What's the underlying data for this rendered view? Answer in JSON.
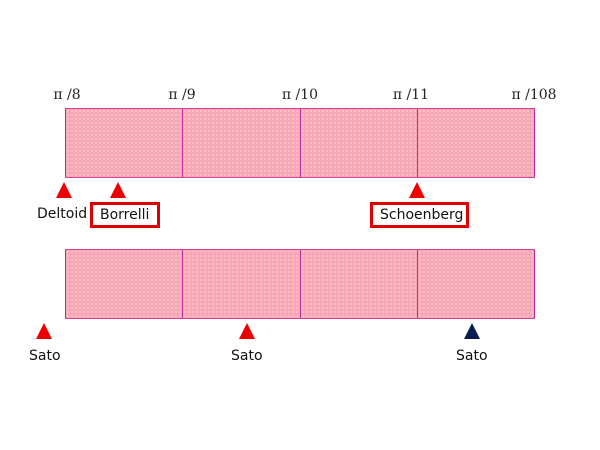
{
  "scale_ticks": [
    "π /8",
    "π /9",
    "π /10",
    "π /11",
    "π /108"
  ],
  "top_markers": [
    {
      "label": "Deltoid",
      "highlighted": false,
      "color": "#ee0000"
    },
    {
      "label": "Borrelli",
      "highlighted": true,
      "color": "#ee0000"
    },
    {
      "label": "Schoenberg",
      "highlighted": true,
      "color": "#ee0000"
    }
  ],
  "bottom_markers": [
    {
      "label": "Sato",
      "color": "#ee0000"
    },
    {
      "label": "Sato",
      "color": "#ee0000"
    },
    {
      "label": "Sato",
      "color": "#0b1d4d"
    }
  ],
  "colors": {
    "bar_fill": "#f7a8b4",
    "divider": "#c02b9e",
    "marker_red": "#ee0000",
    "marker_navy": "#0b1d4d",
    "highlight_border": "#e00000"
  }
}
